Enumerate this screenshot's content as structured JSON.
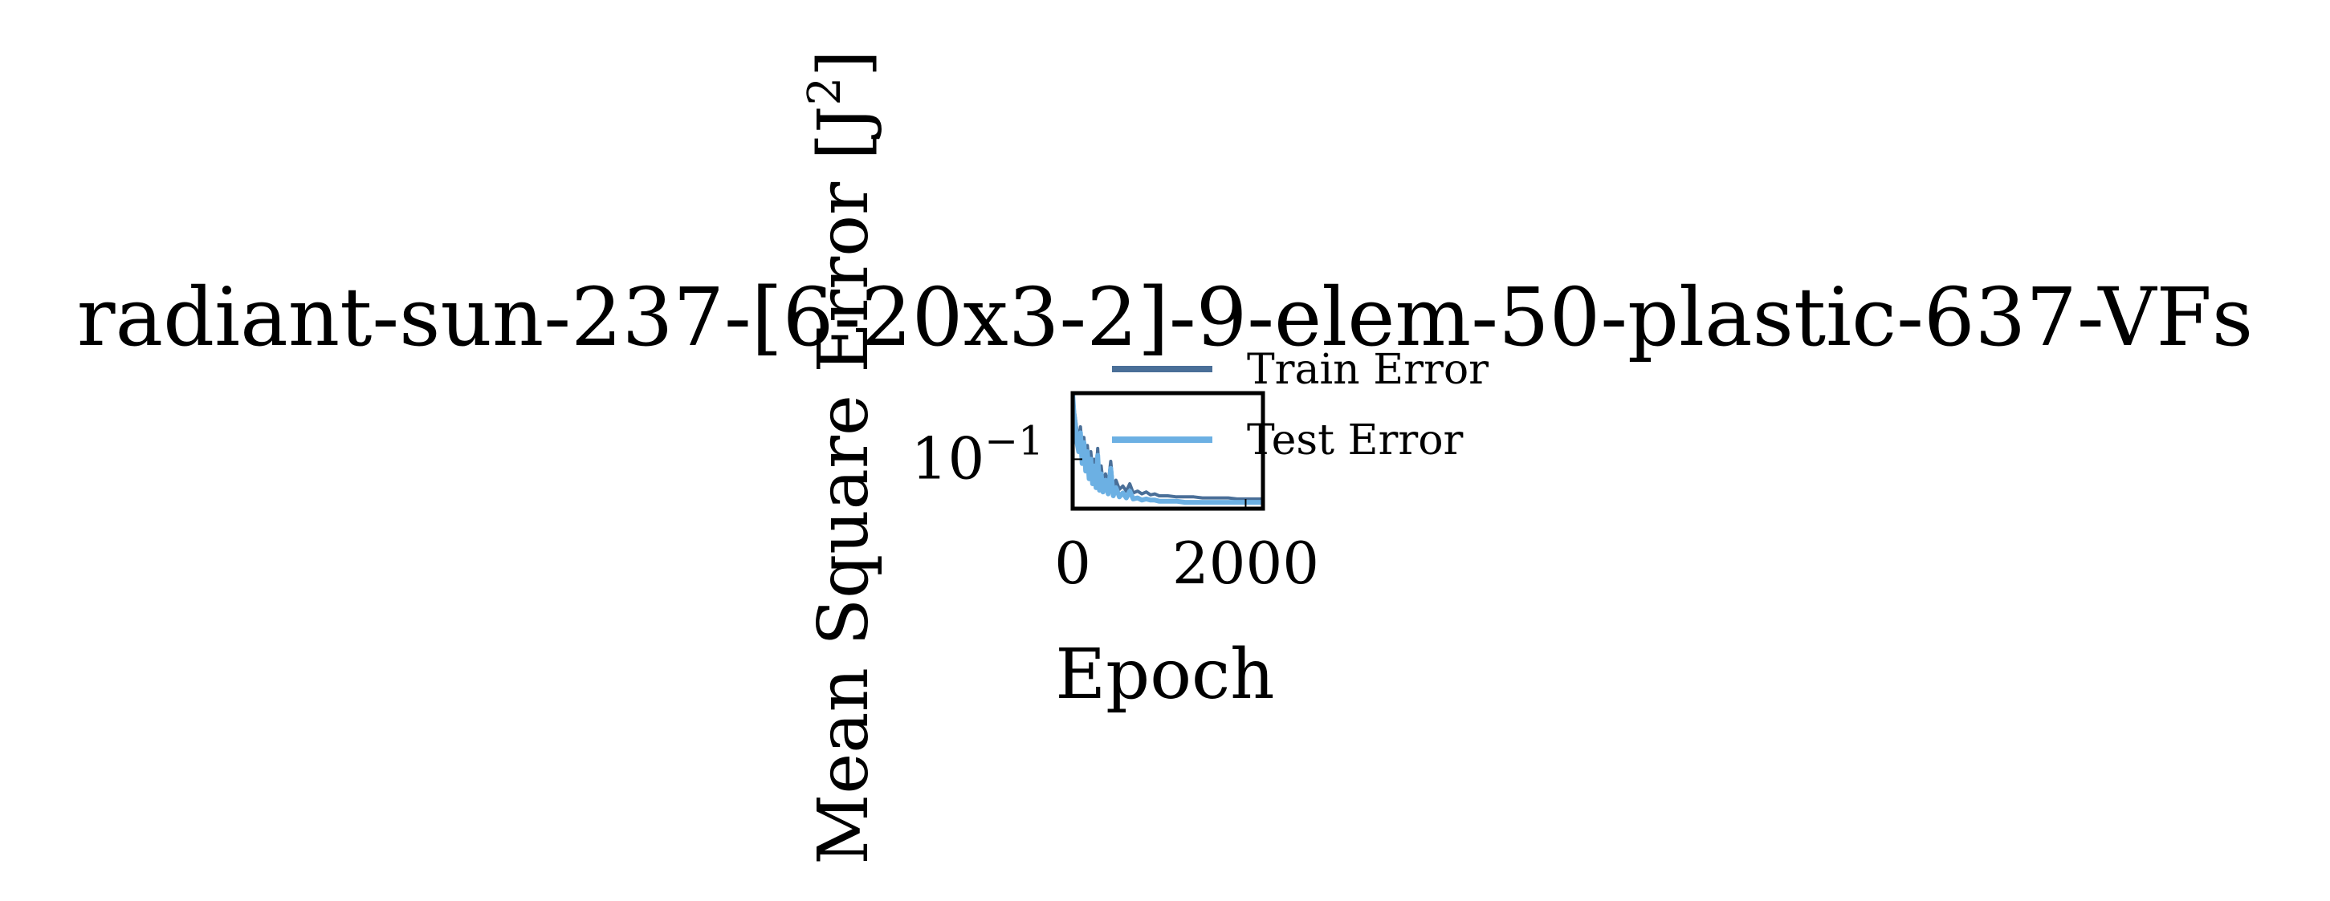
{
  "chart_data": {
    "type": "line",
    "title": "radiant-sun-237-[6-20x3-2]-9-elem-50-plastic-637-VFs",
    "xlabel": "Epoch",
    "ylabel_main": "Mean Square Error [J",
    "ylabel_sup": "2",
    "ylabel_end": "]",
    "xlim": [
      0,
      2200
    ],
    "ylim": [
      0.03,
      0.5
    ],
    "yscale": "log",
    "xticks": [
      {
        "value": 0,
        "label": "0"
      },
      {
        "value": 2000,
        "label": "2000"
      }
    ],
    "yticks": [
      {
        "value": 0.1,
        "base": "10",
        "exp": "−1"
      }
    ],
    "legend_position": "upper-right",
    "series": [
      {
        "name": "Train Error",
        "color": "#4a6f98",
        "x": [
          0,
          15,
          30,
          50,
          70,
          90,
          110,
          130,
          150,
          170,
          190,
          210,
          230,
          250,
          270,
          290,
          310,
          330,
          350,
          380,
          410,
          440,
          470,
          500,
          540,
          580,
          620,
          660,
          700,
          750,
          800,
          850,
          900,
          950,
          1000,
          1100,
          1200,
          1300,
          1400,
          1500,
          1600,
          1700,
          1800,
          1900,
          2000,
          2100,
          2200
        ],
        "y": [
          0.45,
          0.35,
          0.28,
          0.2,
          0.16,
          0.22,
          0.13,
          0.17,
          0.1,
          0.14,
          0.085,
          0.12,
          0.075,
          0.1,
          0.068,
          0.13,
          0.062,
          0.085,
          0.058,
          0.07,
          0.054,
          0.095,
          0.05,
          0.06,
          0.048,
          0.052,
          0.046,
          0.055,
          0.044,
          0.046,
          0.043,
          0.045,
          0.042,
          0.043,
          0.041,
          0.041,
          0.04,
          0.04,
          0.04,
          0.039,
          0.039,
          0.039,
          0.039,
          0.038,
          0.038,
          0.038,
          0.038
        ]
      },
      {
        "name": "Test Error",
        "color": "#6cb0e3",
        "x": [
          0,
          15,
          30,
          50,
          70,
          90,
          110,
          130,
          150,
          170,
          190,
          210,
          230,
          250,
          270,
          290,
          310,
          330,
          350,
          380,
          410,
          440,
          470,
          500,
          540,
          580,
          620,
          660,
          700,
          750,
          800,
          850,
          900,
          950,
          1000,
          1100,
          1200,
          1300,
          1400,
          1500,
          1600,
          1700,
          1800,
          1900,
          2000,
          2100,
          2200
        ],
        "y": [
          0.5,
          0.3,
          0.24,
          0.15,
          0.12,
          0.19,
          0.09,
          0.15,
          0.075,
          0.12,
          0.062,
          0.1,
          0.055,
          0.085,
          0.05,
          0.11,
          0.047,
          0.07,
          0.045,
          0.06,
          0.043,
          0.08,
          0.041,
          0.05,
          0.04,
          0.044,
          0.039,
          0.046,
          0.038,
          0.039,
          0.037,
          0.038,
          0.037,
          0.037,
          0.036,
          0.036,
          0.036,
          0.035,
          0.035,
          0.035,
          0.035,
          0.035,
          0.035,
          0.035,
          0.035,
          0.035,
          0.035
        ]
      }
    ]
  }
}
